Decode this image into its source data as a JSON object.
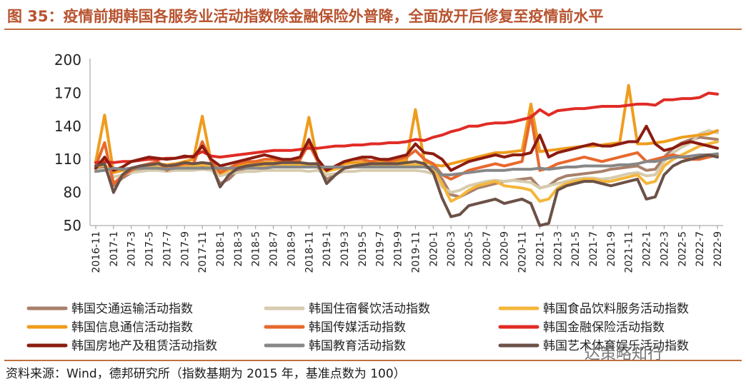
{
  "title": "图 35：疫情前期韩国各服务业活动指数除金融保险外普降，全面放开后修复至疫情前水平",
  "source": "资料来源：Wind，德邦研究所（指数基期为 2015 年，基准点数为 100）",
  "watermark": "达策略知行",
  "chart_data": {
    "type": "line",
    "ylim": [
      50,
      200
    ],
    "yticks": [
      50,
      80,
      110,
      140,
      170,
      200
    ],
    "grid": false,
    "legend_position": "bottom",
    "x": [
      "2016-11",
      "2016-12",
      "2017-1",
      "2017-2",
      "2017-3",
      "2017-4",
      "2017-5",
      "2017-6",
      "2017-7",
      "2017-8",
      "2017-9",
      "2017-10",
      "2017-11",
      "2017-12",
      "2018-1",
      "2018-2",
      "2018-3",
      "2018-4",
      "2018-5",
      "2018-6",
      "2018-7",
      "2018-8",
      "2018-9",
      "2018-10",
      "2018-11",
      "2018-12",
      "2019-1",
      "2019-2",
      "2019-3",
      "2019-4",
      "2019-5",
      "2019-6",
      "2019-7",
      "2019-8",
      "2019-9",
      "2019-10",
      "2019-11",
      "2019-12",
      "2020-1",
      "2020-2",
      "2020-3",
      "2020-4",
      "2020-5",
      "2020-6",
      "2020-7",
      "2020-8",
      "2020-9",
      "2020-10",
      "2020-11",
      "2020-12",
      "2021-1",
      "2021-2",
      "2021-3",
      "2021-4",
      "2021-5",
      "2021-6",
      "2021-7",
      "2021-8",
      "2021-9",
      "2021-10",
      "2021-11",
      "2021-12",
      "2022-1",
      "2022-2",
      "2022-3",
      "2022-4",
      "2022-5",
      "2022-6",
      "2022-7",
      "2022-8",
      "2022-9"
    ],
    "x_tick_labels": [
      "2016-11",
      "2017-1",
      "2017-3",
      "2017-5",
      "2017-7",
      "2017-9",
      "2017-11",
      "2018-1",
      "2018-3",
      "2018-5",
      "2018-7",
      "2018-9",
      "2018-11",
      "2019-1",
      "2019-3",
      "2019-5",
      "2019-7",
      "2019-9",
      "2019-11",
      "2020-1",
      "2020-3",
      "2020-5",
      "2020-7",
      "2020-9",
      "2020-11",
      "2021-1",
      "2021-3",
      "2021-5",
      "2021-7",
      "2021-9",
      "2021-11",
      "2022-1",
      "2022-3",
      "2022-5",
      "2022-7",
      "2022-9"
    ],
    "series": [
      {
        "name": "韩国交通运输活动指数",
        "color": "#a8806a",
        "values": [
          101,
          103,
          86,
          93,
          98,
          100,
          101,
          102,
          101,
          102,
          103,
          103,
          104,
          103,
          88,
          92,
          100,
          102,
          103,
          103,
          103,
          104,
          104,
          104,
          103,
          103,
          92,
          96,
          102,
          103,
          103,
          104,
          103,
          103,
          103,
          103,
          104,
          103,
          101,
          92,
          78,
          76,
          80,
          84,
          86,
          88,
          90,
          91,
          92,
          93,
          84,
          86,
          92,
          95,
          96,
          97,
          98,
          99,
          101,
          102,
          103,
          104,
          100,
          101,
          112,
          120,
          125,
          128,
          130,
          129,
          128
        ]
      },
      {
        "name": "韩国住宿餐饮活动指数",
        "color": "#d6cbae",
        "values": [
          100,
          101,
          94,
          96,
          98,
          99,
          100,
          100,
          99,
          100,
          100,
          100,
          101,
          100,
          95,
          97,
          98,
          99,
          99,
          100,
          100,
          100,
          100,
          100,
          99,
          100,
          96,
          97,
          99,
          99,
          100,
          100,
          100,
          100,
          100,
          100,
          100,
          99,
          97,
          85,
          80,
          82,
          86,
          88,
          90,
          91,
          90,
          91,
          90,
          89,
          84,
          86,
          88,
          90,
          92,
          93,
          93,
          92,
          93,
          95,
          97,
          98,
          95,
          96,
          108,
          116,
          121,
          125,
          133,
          136,
          134
        ]
      },
      {
        "name": "韩国食品饮料服务活动指数",
        "color": "#f4b63c",
        "values": [
          103,
          105,
          98,
          100,
          101,
          102,
          103,
          103,
          102,
          103,
          104,
          104,
          105,
          104,
          97,
          100,
          102,
          103,
          104,
          104,
          104,
          105,
          105,
          105,
          104,
          104,
          99,
          101,
          103,
          104,
          104,
          105,
          104,
          104,
          104,
          105,
          105,
          104,
          101,
          88,
          72,
          76,
          82,
          86,
          88,
          90,
          86,
          85,
          84,
          82,
          72,
          74,
          84,
          88,
          90,
          92,
          92,
          90,
          90,
          92,
          94,
          96,
          88,
          90,
          104,
          110,
          114,
          118,
          122,
          124,
          126
        ]
      },
      {
        "name": "韩国信息通信活动指数",
        "color": "#ef9c1c",
        "values": [
          108,
          150,
          98,
          100,
          101,
          104,
          105,
          106,
          105,
          106,
          108,
          110,
          149,
          107,
          100,
          102,
          104,
          106,
          107,
          107,
          107,
          108,
          108,
          109,
          148,
          107,
          100,
          103,
          106,
          107,
          107,
          108,
          108,
          108,
          108,
          109,
          155,
          108,
          105,
          104,
          106,
          108,
          110,
          112,
          114,
          116,
          116,
          117,
          118,
          160,
          117,
          118,
          119,
          120,
          121,
          122,
          122,
          123,
          124,
          125,
          177,
          124,
          124,
          125,
          126,
          128,
          130,
          131,
          132,
          133,
          136
        ]
      },
      {
        "name": "韩国传媒活动指数",
        "color": "#e8682d",
        "values": [
          104,
          125,
          88,
          95,
          100,
          104,
          106,
          108,
          100,
          104,
          106,
          106,
          126,
          108,
          98,
          102,
          106,
          108,
          108,
          110,
          110,
          108,
          108,
          110,
          124,
          108,
          100,
          104,
          108,
          110,
          110,
          108,
          110,
          108,
          110,
          112,
          118,
          110,
          106,
          96,
          92,
          96,
          100,
          102,
          104,
          106,
          104,
          106,
          108,
          150,
          100,
          102,
          106,
          108,
          110,
          112,
          110,
          108,
          110,
          112,
          114,
          116,
          108,
          110,
          112,
          114,
          112,
          110,
          110,
          112,
          114
        ]
      },
      {
        "name": "韩国金融保险活动指数",
        "color": "#e02c25",
        "values": [
          107,
          108,
          107,
          108,
          108,
          109,
          110,
          110,
          111,
          111,
          112,
          113,
          117,
          113,
          112,
          113,
          114,
          115,
          116,
          117,
          118,
          118,
          118,
          119,
          120,
          120,
          121,
          122,
          122,
          123,
          123,
          124,
          124,
          125,
          125,
          126,
          128,
          127,
          130,
          132,
          135,
          137,
          140,
          140,
          142,
          143,
          143,
          144,
          146,
          148,
          155,
          150,
          154,
          155,
          156,
          156,
          157,
          158,
          158,
          158,
          159,
          160,
          160,
          159,
          164,
          164,
          165,
          165,
          166,
          170,
          169
        ]
      },
      {
        "name": "韩国房地产及租赁活动指数",
        "color": "#8c1c10",
        "values": [
          102,
          112,
          100,
          103,
          108,
          110,
          112,
          111,
          110,
          111,
          113,
          112,
          122,
          110,
          104,
          106,
          108,
          110,
          112,
          114,
          112,
          110,
          110,
          112,
          128,
          110,
          100,
          104,
          108,
          110,
          112,
          112,
          110,
          110,
          112,
          114,
          124,
          116,
          115,
          110,
          100,
          104,
          108,
          110,
          112,
          114,
          112,
          114,
          114,
          116,
          132,
          112,
          116,
          118,
          120,
          122,
          124,
          122,
          122,
          124,
          126,
          126,
          140,
          124,
          118,
          120,
          124,
          126,
          124,
          122,
          120
        ]
      },
      {
        "name": "韩国教育活动指数",
        "color": "#878787",
        "values": [
          99,
          100,
          102,
          101,
          102,
          102,
          102,
          102,
          101,
          102,
          102,
          102,
          102,
          102,
          102,
          102,
          102,
          102,
          102,
          102,
          103,
          103,
          103,
          103,
          103,
          103,
          103,
          103,
          103,
          103,
          103,
          103,
          103,
          103,
          103,
          103,
          103,
          103,
          103,
          96,
          96,
          97,
          98,
          99,
          100,
          100,
          100,
          101,
          101,
          101,
          102,
          101,
          102,
          103,
          103,
          104,
          104,
          104,
          104,
          105,
          105,
          106,
          108,
          108,
          110,
          112,
          112,
          113,
          114,
          114,
          115
        ]
      },
      {
        "name": "韩国艺术体育娱乐活动指数",
        "color": "#6b5147",
        "values": [
          104,
          106,
          80,
          96,
          102,
          104,
          105,
          106,
          104,
          105,
          107,
          106,
          107,
          106,
          85,
          96,
          102,
          104,
          105,
          106,
          106,
          107,
          107,
          107,
          106,
          106,
          88,
          96,
          102,
          104,
          105,
          106,
          106,
          106,
          106,
          107,
          108,
          106,
          98,
          75,
          58,
          60,
          68,
          70,
          72,
          74,
          70,
          72,
          74,
          70,
          50,
          52,
          82,
          86,
          88,
          90,
          90,
          88,
          86,
          88,
          90,
          92,
          74,
          76,
          96,
          104,
          108,
          110,
          112,
          114,
          112
        ]
      }
    ]
  }
}
